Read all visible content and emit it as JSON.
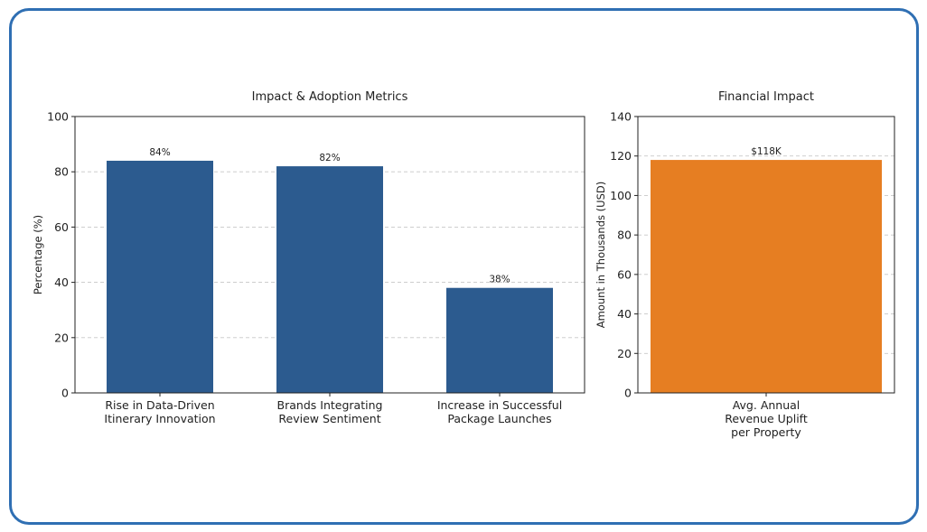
{
  "chart_data": [
    {
      "type": "bar",
      "title": "Impact & Adoption Metrics",
      "xlabel": "",
      "ylabel": "Percentage (%)",
      "ylim": [
        0,
        100
      ],
      "yticks": [
        0,
        20,
        40,
        60,
        80,
        100
      ],
      "grid": "y-dashed",
      "categories": [
        [
          "Rise in Data-Driven",
          "Itinerary Innovation"
        ],
        [
          "Brands Integrating",
          "Review Sentiment"
        ],
        [
          "Increase in Successful",
          "Package Launches"
        ]
      ],
      "values": [
        84,
        82,
        38
      ],
      "data_labels": [
        "84%",
        "82%",
        "38%"
      ],
      "color": "#2c5b8f"
    },
    {
      "type": "bar",
      "title": "Financial Impact",
      "xlabel": "",
      "ylabel": "Amount in Thousands (USD)",
      "ylim": [
        0,
        140
      ],
      "yticks": [
        0,
        20,
        40,
        60,
        80,
        100,
        120,
        140
      ],
      "grid": "y-dashed",
      "categories": [
        [
          "Avg. Annual",
          "Revenue Uplift",
          "per Property"
        ]
      ],
      "values": [
        118
      ],
      "data_labels": [
        "$118K"
      ],
      "color": "#e67e22"
    }
  ]
}
